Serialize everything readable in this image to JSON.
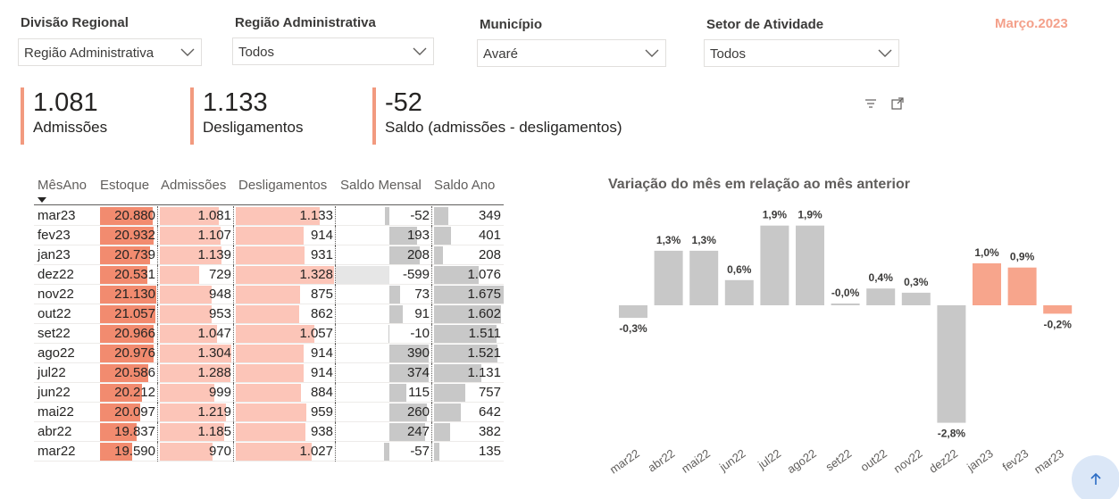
{
  "filters": [
    {
      "label": "Divisão Regional",
      "value": "Região Administrativa"
    },
    {
      "label": "Região Administrativa",
      "value": "Todos"
    },
    {
      "label": "Município",
      "value": "Avaré"
    },
    {
      "label": "Setor de Atividade",
      "value": "Todos"
    }
  ],
  "period": "Março.2023",
  "kpis": [
    {
      "value": "1.081",
      "label": "Admissões"
    },
    {
      "value": "1.133",
      "label": "Desligamentos"
    },
    {
      "value": "-52",
      "label": "Saldo (admissões - desligamentos)"
    }
  ],
  "table": {
    "headers": [
      "MêsAno",
      "Estoque",
      "Admissões",
      "Desligamentos",
      "Saldo Mensal",
      "Saldo Ano"
    ],
    "rows": [
      [
        "mar23",
        "20.880",
        "1.081",
        "1.133",
        "-52",
        "349"
      ],
      [
        "fev23",
        "20.932",
        "1.107",
        "914",
        "193",
        "401"
      ],
      [
        "jan23",
        "20.739",
        "1.139",
        "931",
        "208",
        "208"
      ],
      [
        "dez22",
        "20.531",
        "729",
        "1.328",
        "-599",
        "1.076"
      ],
      [
        "nov22",
        "21.130",
        "948",
        "875",
        "73",
        "1.675"
      ],
      [
        "out22",
        "21.057",
        "953",
        "862",
        "91",
        "1.602"
      ],
      [
        "set22",
        "20.966",
        "1.047",
        "1.057",
        "-10",
        "1.511"
      ],
      [
        "ago22",
        "20.976",
        "1.304",
        "914",
        "390",
        "1.521"
      ],
      [
        "jul22",
        "20.586",
        "1.288",
        "914",
        "374",
        "1.131"
      ],
      [
        "jun22",
        "20.212",
        "999",
        "884",
        "115",
        "757"
      ],
      [
        "mai22",
        "20.097",
        "1.219",
        "959",
        "260",
        "642"
      ],
      [
        "abr22",
        "19.837",
        "1.185",
        "938",
        "247",
        "382"
      ],
      [
        "mar22",
        "19.590",
        "970",
        "1.027",
        "-57",
        "135"
      ]
    ]
  },
  "chart_data": {
    "type": "bar",
    "title": "Variação do mês em relação ao mês anterior",
    "categories": [
      "mar22",
      "abr22",
      "mai22",
      "jun22",
      "jul22",
      "ago22",
      "set22",
      "out22",
      "nov22",
      "dez22",
      "jan23",
      "fev23",
      "mar23"
    ],
    "values": [
      -0.3,
      1.3,
      1.3,
      0.6,
      1.9,
      1.9,
      -0.0,
      0.4,
      0.3,
      -2.8,
      1.0,
      0.9,
      -0.2
    ],
    "labels": [
      "-0,3%",
      "1,3%",
      "1,3%",
      "0,6%",
      "1,9%",
      "1,9%",
      "-0,0%",
      "0,4%",
      "0,3%",
      "-2,8%",
      "1,0%",
      "0,9%",
      "-0,2%"
    ],
    "highlighted": [
      "jan23",
      "fev23",
      "mar23"
    ],
    "colors": {
      "default": "#c8c8c8",
      "highlight": "#f7a58c"
    }
  },
  "colors": {
    "accent": "#f29a7f",
    "estoque_bar": "#f28b6f",
    "adm_bar": "#fcc5b8",
    "saldo_bar": "#c8c8c8",
    "saldo_neg_bar": "#e6e6e6"
  },
  "icons": [
    "chevron-down-icon",
    "filter-icon",
    "focus-mode-icon",
    "sort-desc-icon",
    "arrow-up-icon"
  ]
}
